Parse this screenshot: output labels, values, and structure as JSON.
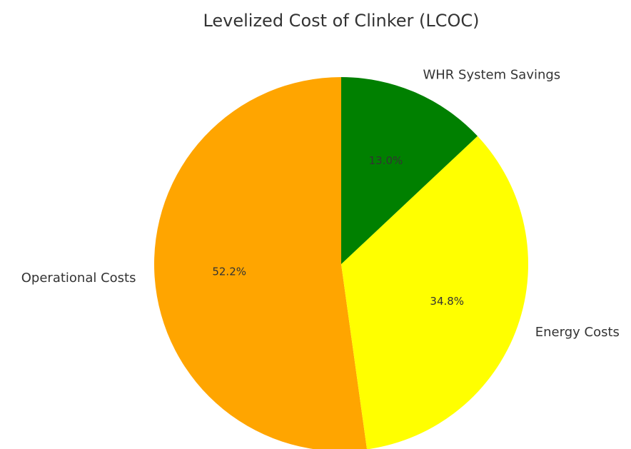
{
  "chart_data": {
    "type": "pie",
    "title": "Levelized Cost of Clinker (LCOC)",
    "categories": [
      "Operational Costs",
      "Energy Costs",
      "WHR System Savings"
    ],
    "values": [
      52.2,
      34.8,
      13.0
    ],
    "value_labels": [
      "52.2%",
      "34.8%",
      "13.0%"
    ],
    "colors": [
      "orange",
      "yellow",
      "green"
    ],
    "start_angle": 90,
    "counterclockwise": true
  }
}
